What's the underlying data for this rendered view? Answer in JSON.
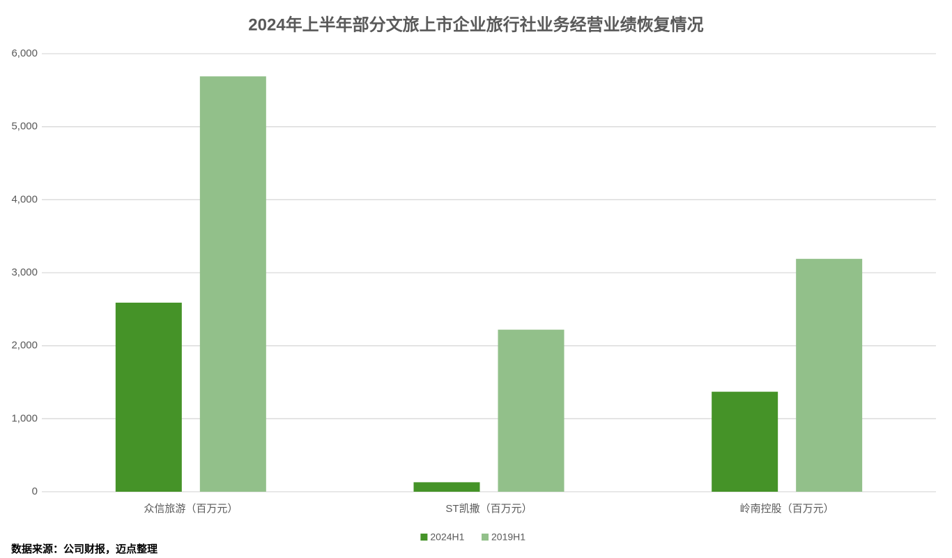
{
  "chart_data": {
    "type": "bar",
    "title": "2024年上半年部分文旅上市企业旅行社业务经营业绩恢复情况",
    "categories": [
      "众信旅游（百万元）",
      "ST凯撒（百万元）",
      "岭南控股（百万元）"
    ],
    "series": [
      {
        "name": "2024H1",
        "color": "#459328",
        "values": [
          2590,
          130,
          1370
        ]
      },
      {
        "name": "2019H1",
        "color": "#92c08a",
        "values": [
          5690,
          2220,
          3190
        ]
      }
    ],
    "ylim": [
      0,
      6000
    ],
    "yticks": [
      0,
      {
        "value": 1000,
        "label": "1,000"
      },
      {
        "value": 2000,
        "label": "2,000"
      },
      {
        "value": 3000,
        "label": "3,000"
      },
      {
        "value": 4000,
        "label": "4,000"
      },
      {
        "value": 5000,
        "label": "5,000"
      },
      {
        "value": 6000,
        "label": "6,000"
      }
    ],
    "grid": true,
    "legend": "bottom",
    "source": "数据来源：公司财报，迈点整理"
  }
}
